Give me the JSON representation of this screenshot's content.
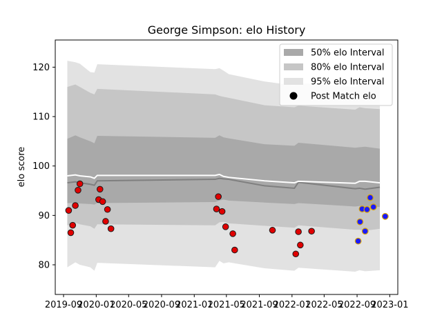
{
  "chart_data": {
    "type": "scatter",
    "title": "George Simpson: elo History",
    "xlabel": "",
    "ylabel": "elo score",
    "xlim": [
      "2019-08-01",
      "2023-01-31"
    ],
    "ylim": [
      74,
      125.5
    ],
    "x_ticks": [
      {
        "date": "2019-09-01",
        "label": "2019-09"
      },
      {
        "date": "2020-01-01",
        "label": "2020-01"
      },
      {
        "date": "2020-05-01",
        "label": "2020-05"
      },
      {
        "date": "2020-09-01",
        "label": "2020-09"
      },
      {
        "date": "2021-01-01",
        "label": "2021-01"
      },
      {
        "date": "2021-05-01",
        "label": "2021-05"
      },
      {
        "date": "2021-09-01",
        "label": "2021-09"
      },
      {
        "date": "2022-01-01",
        "label": "2022-01"
      },
      {
        "date": "2022-05-01",
        "label": "2022-05"
      },
      {
        "date": "2022-09-01",
        "label": "2022-09"
      },
      {
        "date": "2023-01-01",
        "label": "2023-01"
      }
    ],
    "y_ticks": [
      80,
      90,
      100,
      110,
      120
    ],
    "grid": false,
    "legend_position": "top-right",
    "legend": [
      {
        "label": "50% elo Interval",
        "kind": "band",
        "color": "#a9a9a9"
      },
      {
        "label": "80% elo Interval",
        "kind": "band",
        "color": "#c6c6c6"
      },
      {
        "label": "95% elo Interval",
        "kind": "band",
        "color": "#e2e2e2"
      },
      {
        "label": "Post Match elo",
        "kind": "marker",
        "color": "#000000"
      }
    ],
    "band_dates": [
      "2019-09-15",
      "2019-10-15",
      "2019-11-01",
      "2019-12-10",
      "2019-12-25",
      "2020-01-05",
      "2021-03-20",
      "2021-04-05",
      "2021-04-20",
      "2021-05-10",
      "2021-09-20",
      "2022-01-10",
      "2022-01-25",
      "2022-08-25",
      "2022-09-10",
      "2022-10-01",
      "2022-11-25"
    ],
    "median": [
      96.6,
      96.8,
      96.6,
      96.3,
      96.1,
      97.0,
      97.3,
      97.5,
      97.4,
      97.3,
      96.0,
      95.5,
      96.7,
      95.4,
      95.5,
      95.3,
      95.7
    ],
    "mean": [
      98.0,
      98.2,
      98.0,
      97.8,
      97.5,
      98.1,
      98.1,
      98.3,
      97.9,
      97.7,
      97.0,
      96.6,
      96.9,
      96.5,
      96.9,
      96.9,
      96.6
    ],
    "band_50": {
      "lower": [
        92.5,
        92.5,
        92.4,
        92.3,
        92.2,
        92.5,
        92.7,
        93.0,
        93.2,
        93.0,
        92.6,
        92.3,
        92.5,
        91.8,
        91.9,
        91.8,
        91.7
      ],
      "upper": [
        105.5,
        106.2,
        105.8,
        105.0,
        104.6,
        106.1,
        105.7,
        106.2,
        105.8,
        105.6,
        104.4,
        104.1,
        104.7,
        103.7,
        103.8,
        103.9,
        103.5
      ]
    },
    "band_80": {
      "lower": [
        88.0,
        88.5,
        88.2,
        87.8,
        87.3,
        88.2,
        88.0,
        88.6,
        88.7,
        88.4,
        87.9,
        87.5,
        88.0,
        87.1,
        87.1,
        86.9,
        87.3
      ],
      "upper": [
        116.0,
        116.5,
        116.0,
        114.8,
        114.5,
        115.6,
        114.5,
        114.2,
        114.0,
        113.8,
        112.3,
        111.9,
        112.2,
        111.4,
        111.9,
        111.7,
        111.5
      ]
    },
    "band_95": {
      "lower": [
        79.5,
        80.5,
        80.0,
        79.5,
        78.8,
        80.4,
        79.5,
        80.8,
        80.3,
        80.5,
        79.3,
        78.8,
        79.4,
        78.6,
        78.9,
        78.7,
        78.9
      ],
      "upper": [
        121.3,
        121.0,
        120.7,
        119.0,
        118.9,
        120.6,
        119.6,
        119.8,
        119.3,
        118.6,
        117.1,
        116.3,
        116.8,
        116.0,
        116.8,
        116.7,
        116.2
      ]
    },
    "points": [
      {
        "date": "2019-09-20",
        "elo": 91.0,
        "color": "#e00000"
      },
      {
        "date": "2019-09-28",
        "elo": 86.5,
        "color": "#e00000"
      },
      {
        "date": "2019-10-05",
        "elo": 88.0,
        "color": "#e00000"
      },
      {
        "date": "2019-10-15",
        "elo": 92.0,
        "color": "#e00000"
      },
      {
        "date": "2019-10-25",
        "elo": 95.1,
        "color": "#e00000"
      },
      {
        "date": "2019-11-01",
        "elo": 96.4,
        "color": "#e00000"
      },
      {
        "date": "2020-01-10",
        "elo": 93.2,
        "color": "#e00000"
      },
      {
        "date": "2020-01-15",
        "elo": 95.3,
        "color": "#e00000"
      },
      {
        "date": "2020-01-25",
        "elo": 92.8,
        "color": "#e00000"
      },
      {
        "date": "2020-02-05",
        "elo": 88.8,
        "color": "#e00000"
      },
      {
        "date": "2020-02-12",
        "elo": 91.2,
        "color": "#e00000"
      },
      {
        "date": "2020-02-25",
        "elo": 87.3,
        "color": "#e00000"
      },
      {
        "date": "2021-03-25",
        "elo": 91.3,
        "color": "#e00000"
      },
      {
        "date": "2021-04-01",
        "elo": 93.8,
        "color": "#e00000"
      },
      {
        "date": "2021-04-15",
        "elo": 90.8,
        "color": "#e00000"
      },
      {
        "date": "2021-04-28",
        "elo": 87.7,
        "color": "#e00000"
      },
      {
        "date": "2021-05-25",
        "elo": 86.3,
        "color": "#e00000"
      },
      {
        "date": "2021-06-01",
        "elo": 83.0,
        "color": "#e00000"
      },
      {
        "date": "2021-10-20",
        "elo": 87.0,
        "color": "#e00000"
      },
      {
        "date": "2022-01-15",
        "elo": 82.2,
        "color": "#e00000"
      },
      {
        "date": "2022-01-25",
        "elo": 86.7,
        "color": "#e00000"
      },
      {
        "date": "2022-02-01",
        "elo": 84.0,
        "color": "#e00000"
      },
      {
        "date": "2022-03-15",
        "elo": 86.8,
        "color": "#e00000"
      },
      {
        "date": "2022-09-05",
        "elo": 84.8,
        "color": "#1a1aff"
      },
      {
        "date": "2022-09-12",
        "elo": 88.7,
        "color": "#1a1aff"
      },
      {
        "date": "2022-09-20",
        "elo": 91.3,
        "color": "#1a1aff"
      },
      {
        "date": "2022-10-01",
        "elo": 86.8,
        "color": "#1a1aff"
      },
      {
        "date": "2022-10-08",
        "elo": 91.2,
        "color": "#1a1aff"
      },
      {
        "date": "2022-10-20",
        "elo": 93.6,
        "color": "#1a1aff"
      },
      {
        "date": "2022-11-01",
        "elo": 91.7,
        "color": "#1a1aff"
      },
      {
        "date": "2022-12-15",
        "elo": 89.8,
        "color": "#1a1aff"
      }
    ],
    "marker_edge": "#d9a400"
  }
}
